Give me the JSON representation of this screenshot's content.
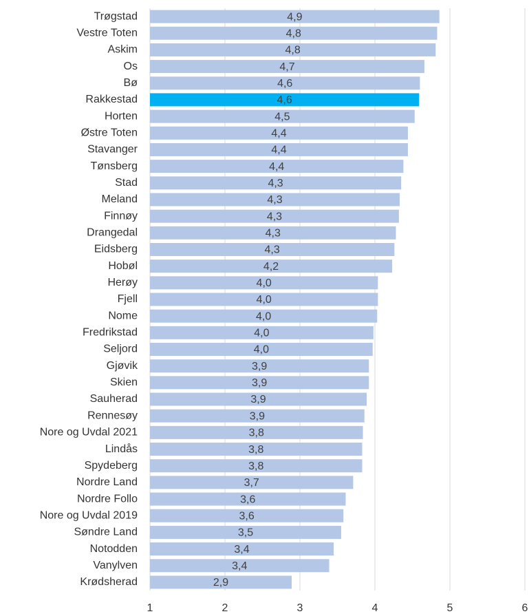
{
  "chart_data": {
    "type": "barh",
    "categories": [
      "Trøgstad",
      "Vestre Toten",
      "Askim",
      "Os",
      "Bø",
      "Rakkestad",
      "Horten",
      "Østre Toten",
      "Stavanger",
      "Tønsberg",
      "Stad",
      "Meland",
      "Finnøy",
      "Drangedal",
      "Eidsberg",
      "Hobøl",
      "Herøy",
      "Fjell",
      "Nome",
      "Fredrikstad",
      "Seljord",
      "Gjøvik",
      "Skien",
      "Sauherad",
      "Rennesøy",
      "Nore og Uvdal 2021",
      "Lindås",
      "Spydeberg",
      "Nordre Land",
      "Nordre Follo",
      "Nore og Uvdal 2019",
      "Søndre Land",
      "Notodden",
      "Vanylven",
      "Krødsherad"
    ],
    "values": [
      4.86,
      4.83,
      4.81,
      4.66,
      4.6,
      4.59,
      4.53,
      4.44,
      4.44,
      4.38,
      4.35,
      4.33,
      4.32,
      4.28,
      4.26,
      4.23,
      4.04,
      4.04,
      4.03,
      3.98,
      3.97,
      3.92,
      3.92,
      3.89,
      3.86,
      3.84,
      3.83,
      3.83,
      3.71,
      3.61,
      3.58,
      3.55,
      3.45,
      3.39,
      2.89
    ],
    "value_labels": [
      "4,9",
      "4,8",
      "4,8",
      "4,7",
      "4,6",
      "4,6",
      "4,5",
      "4,4",
      "4,4",
      "4,4",
      "4,3",
      "4,3",
      "4,3",
      "4,3",
      "4,3",
      "4,2",
      "4,0",
      "4,0",
      "4,0",
      "4,0",
      "4,0",
      "3,9",
      "3,9",
      "3,9",
      "3,9",
      "3,8",
      "3,8",
      "3,8",
      "3,7",
      "3,6",
      "3,6",
      "3,5",
      "3,4",
      "3,4",
      "2,9"
    ],
    "colors": [
      "#b4c7e7",
      "#b4c7e7",
      "#b4c7e7",
      "#b4c7e7",
      "#b4c7e7",
      "#00b0f0",
      "#b4c7e7",
      "#b4c7e7",
      "#b4c7e7",
      "#b4c7e7",
      "#b4c7e7",
      "#b4c7e7",
      "#b4c7e7",
      "#b4c7e7",
      "#b4c7e7",
      "#b4c7e7",
      "#b4c7e7",
      "#b4c7e7",
      "#b4c7e7",
      "#b4c7e7",
      "#b4c7e7",
      "#b4c7e7",
      "#b4c7e7",
      "#b4c7e7",
      "#b4c7e7",
      "#b4c7e7",
      "#b4c7e7",
      "#b4c7e7",
      "#b4c7e7",
      "#b4c7e7",
      "#b4c7e7",
      "#b4c7e7",
      "#b4c7e7",
      "#b4c7e7",
      "#b4c7e7"
    ],
    "xlim": [
      1,
      6
    ],
    "xticks": [
      1,
      2,
      3,
      4,
      5,
      6
    ],
    "grid": true
  }
}
